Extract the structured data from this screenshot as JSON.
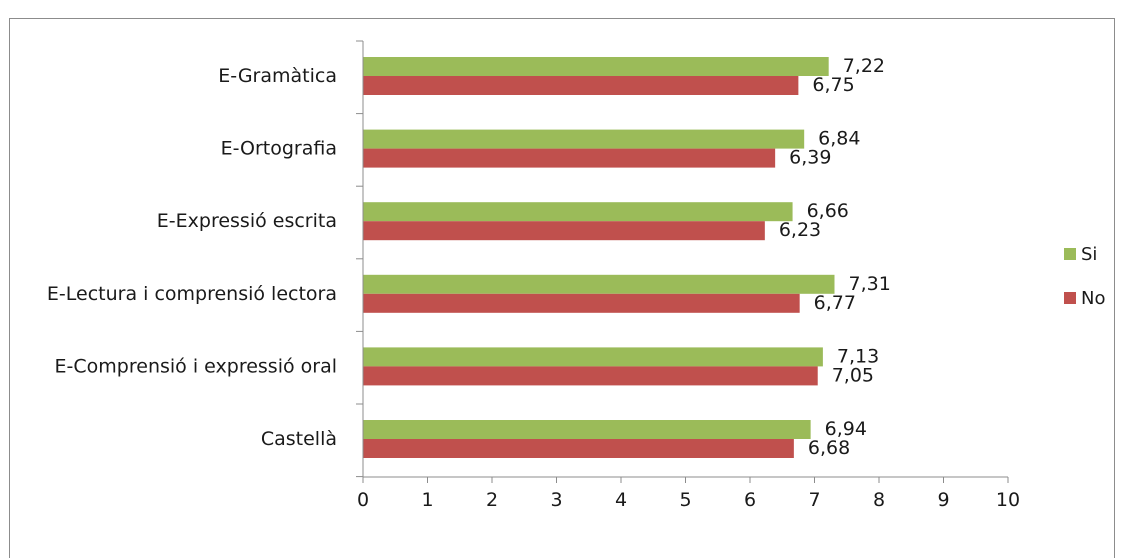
{
  "chart_data": {
    "type": "bar",
    "orientation": "horizontal",
    "categories": [
      "E-Gramàtica",
      "E-Ortografia",
      "E-Expressió escrita",
      "E-Lectura i comprensió lectora",
      "E-Comprensió i expressió oral",
      "Castellà"
    ],
    "series": [
      {
        "name": "Si",
        "color": "#9bbb59",
        "values": [
          7.22,
          6.84,
          6.66,
          7.31,
          7.13,
          6.94
        ],
        "labels": [
          "7,22",
          "6,84",
          "6,66",
          "7,31",
          "7,13",
          "6,94"
        ]
      },
      {
        "name": "No",
        "color": "#c0504d",
        "values": [
          6.75,
          6.39,
          6.23,
          6.77,
          7.05,
          6.68
        ],
        "labels": [
          "6,75",
          "6,39",
          "6,23",
          "6,77",
          "7,05",
          "6,68"
        ]
      }
    ],
    "xlim": [
      0,
      10
    ],
    "xticks": [
      0,
      1,
      2,
      3,
      4,
      5,
      6,
      7,
      8,
      9,
      10
    ],
    "title": "",
    "xlabel": "",
    "ylabel": "",
    "grid": false,
    "legend_position": "right"
  }
}
